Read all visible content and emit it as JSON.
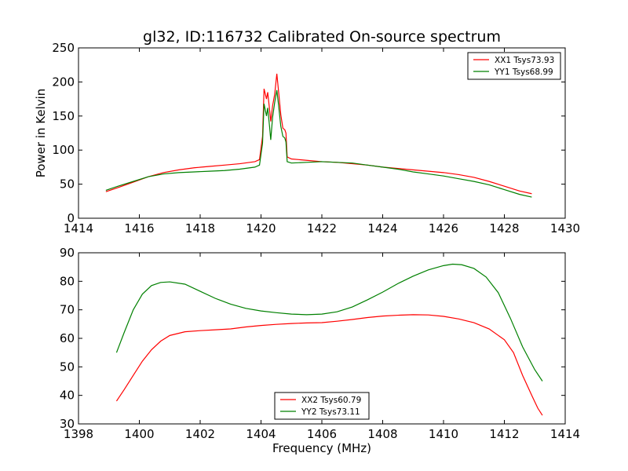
{
  "figure": {
    "title": "gl32, ID:116732 Calibrated On-source spectrum"
  },
  "chart_data": [
    {
      "type": "line",
      "xlabel": "",
      "ylabel": "Power in Kelvin",
      "xlim": [
        1414,
        1430
      ],
      "ylim": [
        0,
        250
      ],
      "xticks": [
        1414,
        1416,
        1418,
        1420,
        1422,
        1424,
        1426,
        1428,
        1430
      ],
      "yticks": [
        0,
        50,
        100,
        150,
        200,
        250
      ],
      "grid": false,
      "legend": "top-right",
      "series": [
        {
          "name": "XX1 Tsys73.93",
          "color": "#ff0000",
          "points": [
            [
              1414.9,
              39
            ],
            [
              1415.3,
              45
            ],
            [
              1415.8,
              53
            ],
            [
              1416.3,
              61
            ],
            [
              1416.8,
              67
            ],
            [
              1417.3,
              71
            ],
            [
              1417.8,
              74
            ],
            [
              1418.3,
              76
            ],
            [
              1418.8,
              78
            ],
            [
              1419.3,
              80
            ],
            [
              1419.8,
              83
            ],
            [
              1419.95,
              86
            ],
            [
              1420.05,
              120
            ],
            [
              1420.1,
              190
            ],
            [
              1420.18,
              175
            ],
            [
              1420.22,
              185
            ],
            [
              1420.28,
              160
            ],
            [
              1420.32,
              142
            ],
            [
              1420.38,
              165
            ],
            [
              1420.45,
              182
            ],
            [
              1420.52,
              212
            ],
            [
              1420.58,
              185
            ],
            [
              1420.65,
              152
            ],
            [
              1420.72,
              132
            ],
            [
              1420.78,
              130
            ],
            [
              1420.82,
              125
            ],
            [
              1420.86,
              90
            ],
            [
              1421.0,
              87
            ],
            [
              1421.5,
              85
            ],
            [
              1422,
              83
            ],
            [
              1422.5,
              82
            ],
            [
              1423,
              80
            ],
            [
              1423.5,
              78
            ],
            [
              1424,
              75
            ],
            [
              1424.5,
              73
            ],
            [
              1425,
              71
            ],
            [
              1425.5,
              69
            ],
            [
              1426,
              67
            ],
            [
              1426.5,
              64
            ],
            [
              1427,
              60
            ],
            [
              1427.5,
              54
            ],
            [
              1428,
              47
            ],
            [
              1428.5,
              40
            ],
            [
              1428.9,
              36
            ]
          ]
        },
        {
          "name": "YY1 Tsys68.99",
          "color": "#008000",
          "points": [
            [
              1414.9,
              41
            ],
            [
              1415.3,
              47
            ],
            [
              1415.8,
              54
            ],
            [
              1416.3,
              61
            ],
            [
              1416.8,
              65
            ],
            [
              1417.3,
              67
            ],
            [
              1417.8,
              68
            ],
            [
              1418.3,
              69
            ],
            [
              1418.8,
              70
            ],
            [
              1419.3,
              72
            ],
            [
              1419.8,
              75
            ],
            [
              1419.95,
              78
            ],
            [
              1420.05,
              110
            ],
            [
              1420.1,
              168
            ],
            [
              1420.18,
              150
            ],
            [
              1420.22,
              162
            ],
            [
              1420.28,
              135
            ],
            [
              1420.32,
              115
            ],
            [
              1420.38,
              148
            ],
            [
              1420.45,
              170
            ],
            [
              1420.52,
              188
            ],
            [
              1420.58,
              165
            ],
            [
              1420.65,
              135
            ],
            [
              1420.72,
              120
            ],
            [
              1420.78,
              118
            ],
            [
              1420.82,
              112
            ],
            [
              1420.86,
              83
            ],
            [
              1421.0,
              81
            ],
            [
              1421.5,
              82
            ],
            [
              1422,
              83
            ],
            [
              1422.5,
              82
            ],
            [
              1423,
              81
            ],
            [
              1423.5,
              78
            ],
            [
              1424,
              75
            ],
            [
              1424.5,
              72
            ],
            [
              1425,
              68
            ],
            [
              1425.5,
              65
            ],
            [
              1426,
              62
            ],
            [
              1426.5,
              58
            ],
            [
              1427,
              54
            ],
            [
              1427.5,
              49
            ],
            [
              1428,
              42
            ],
            [
              1428.5,
              35
            ],
            [
              1428.9,
              31
            ]
          ]
        }
      ]
    },
    {
      "type": "line",
      "xlabel": "Frequency (MHz)",
      "ylabel": "",
      "xlim": [
        1398,
        1414
      ],
      "ylim": [
        30,
        90
      ],
      "xticks": [
        1398,
        1400,
        1402,
        1404,
        1406,
        1408,
        1410,
        1412,
        1414
      ],
      "yticks": [
        30,
        40,
        50,
        60,
        70,
        80,
        90
      ],
      "grid": false,
      "legend": "bottom-center",
      "series": [
        {
          "name": "XX2 Tsys60.79",
          "color": "#ff0000",
          "points": [
            [
              1399.25,
              38
            ],
            [
              1399.5,
              42
            ],
            [
              1399.8,
              47
            ],
            [
              1400.1,
              52
            ],
            [
              1400.4,
              56
            ],
            [
              1400.7,
              59
            ],
            [
              1401,
              61
            ],
            [
              1401.5,
              62.3
            ],
            [
              1402,
              62.7
            ],
            [
              1402.5,
              63
            ],
            [
              1403,
              63.3
            ],
            [
              1403.5,
              64
            ],
            [
              1404,
              64.5
            ],
            [
              1404.5,
              64.9
            ],
            [
              1405,
              65.2
            ],
            [
              1405.5,
              65.4
            ],
            [
              1406,
              65.5
            ],
            [
              1406.5,
              66
            ],
            [
              1407,
              66.6
            ],
            [
              1407.5,
              67.3
            ],
            [
              1408,
              67.8
            ],
            [
              1408.5,
              68.1
            ],
            [
              1409,
              68.3
            ],
            [
              1409.5,
              68.2
            ],
            [
              1410,
              67.7
            ],
            [
              1410.5,
              66.8
            ],
            [
              1411,
              65.5
            ],
            [
              1411.5,
              63.3
            ],
            [
              1412,
              59.5
            ],
            [
              1412.3,
              55
            ],
            [
              1412.6,
              47
            ],
            [
              1412.9,
              40
            ],
            [
              1413.1,
              35.5
            ],
            [
              1413.25,
              33
            ]
          ]
        },
        {
          "name": "YY2 Tsys73.11",
          "color": "#008000",
          "points": [
            [
              1399.25,
              55
            ],
            [
              1399.5,
              62
            ],
            [
              1399.8,
              70
            ],
            [
              1400.1,
              75.5
            ],
            [
              1400.4,
              78.5
            ],
            [
              1400.7,
              79.6
            ],
            [
              1401,
              79.8
            ],
            [
              1401.5,
              79
            ],
            [
              1402,
              76.5
            ],
            [
              1402.5,
              74
            ],
            [
              1403,
              72
            ],
            [
              1403.5,
              70.5
            ],
            [
              1404,
              69.6
            ],
            [
              1404.5,
              69
            ],
            [
              1405,
              68.5
            ],
            [
              1405.5,
              68.3
            ],
            [
              1406,
              68.5
            ],
            [
              1406.5,
              69.3
            ],
            [
              1407,
              71
            ],
            [
              1407.5,
              73.5
            ],
            [
              1408,
              76.2
            ],
            [
              1408.5,
              79.2
            ],
            [
              1409,
              81.8
            ],
            [
              1409.5,
              84
            ],
            [
              1410,
              85.5
            ],
            [
              1410.3,
              86
            ],
            [
              1410.6,
              85.8
            ],
            [
              1411,
              84.5
            ],
            [
              1411.4,
              81.5
            ],
            [
              1411.8,
              76
            ],
            [
              1412.2,
              67
            ],
            [
              1412.6,
              57
            ],
            [
              1413,
              49
            ],
            [
              1413.25,
              45
            ]
          ]
        }
      ]
    }
  ]
}
